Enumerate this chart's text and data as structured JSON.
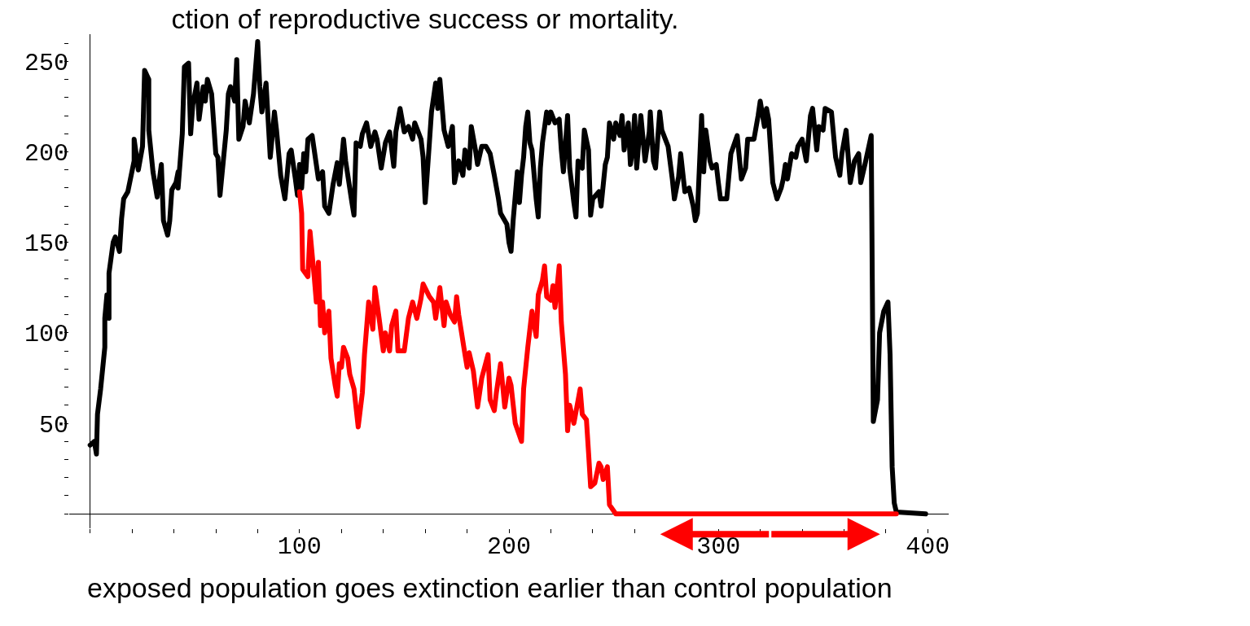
{
  "chart_data": {
    "type": "line",
    "title": "ction of reproductive success or mortality.",
    "annotations": [
      "exposed population goes extinction earlier than control population"
    ],
    "xlim": [
      -10,
      410
    ],
    "ylim": [
      -8,
      265
    ],
    "xticks": [
      100,
      200,
      300,
      400
    ],
    "yticks": [
      50,
      100,
      150,
      200,
      250
    ],
    "marker": "none",
    "line_style": "solid",
    "series": [
      {
        "color": "#000000",
        "x": [
          0,
          2,
          3,
          3.5,
          5,
          7,
          7,
          8,
          9,
          9,
          11,
          12,
          14,
          15,
          16,
          18,
          21,
          21,
          23,
          25,
          26,
          28,
          28,
          30,
          32,
          34,
          35,
          37,
          38,
          39,
          41,
          42,
          42,
          44,
          45,
          47,
          48,
          49,
          51,
          52,
          54,
          55,
          56,
          58,
          60,
          61,
          62,
          65,
          66,
          67,
          69,
          70,
          71,
          73,
          74,
          76,
          78,
          80,
          81,
          82,
          84,
          86,
          88,
          89,
          91,
          93,
          95,
          96,
          98,
          99,
          100,
          101,
          102,
          103,
          104,
          106,
          107,
          109,
          111,
          112,
          114,
          116,
          118,
          119,
          121,
          122,
          125,
          126,
          127,
          129,
          130,
          132,
          134,
          136,
          137,
          139,
          141,
          143,
          145,
          146,
          148,
          150,
          152,
          154,
          155,
          158,
          159,
          160,
          162,
          163,
          165,
          166,
          167,
          169,
          171,
          173,
          174,
          176,
          178,
          179,
          181,
          182,
          184,
          185,
          187,
          189,
          191,
          193,
          195,
          196,
          198,
          199,
          200,
          201,
          202,
          204,
          205,
          206,
          207,
          208,
          209,
          210,
          211,
          213,
          214,
          215,
          216,
          218,
          219,
          220,
          222,
          224,
          225,
          226,
          228,
          229,
          231,
          232,
          233,
          235,
          236,
          238,
          239,
          240,
          243,
          244,
          246,
          247,
          248,
          250,
          251,
          253,
          254,
          255,
          257,
          258,
          259,
          260,
          261,
          263,
          265,
          266,
          267,
          267.5,
          269,
          270,
          272,
          273,
          276,
          278,
          279,
          281,
          282,
          284,
          286,
          288,
          289,
          290,
          292,
          293,
          294,
          296,
          297,
          299,
          300,
          301,
          304,
          306,
          309,
          311,
          313,
          314,
          317,
          319,
          320,
          322,
          323,
          324,
          326,
          328,
          330,
          331,
          332,
          333,
          335,
          337,
          338,
          340,
          342,
          344,
          345,
          347,
          348,
          350,
          351,
          354,
          356,
          358,
          359,
          361,
          363,
          365,
          367,
          368,
          370,
          373,
          374,
          376,
          377,
          379,
          381,
          382,
          383,
          384,
          385,
          399
        ],
        "values": [
          38,
          40,
          33,
          55,
          69,
          92,
          108,
          121,
          108,
          133,
          150,
          153,
          145,
          163,
          174,
          178,
          195,
          207,
          190,
          203,
          245,
          240,
          212,
          189,
          175,
          193,
          162,
          154,
          162,
          179,
          183,
          189,
          180,
          210,
          247,
          249,
          210,
          226,
          238,
          218,
          236,
          228,
          240,
          232,
          199,
          197,
          176,
          212,
          232,
          236,
          228,
          251,
          207,
          214,
          228,
          216,
          232,
          261,
          236,
          222,
          238,
          197,
          222,
          212,
          187,
          174,
          199,
          201,
          185,
          176,
          193,
          180,
          199,
          189,
          207,
          209,
          201,
          185,
          189,
          170,
          166,
          182,
          194,
          182,
          207,
          195,
          172,
          165,
          205,
          203,
          210,
          216,
          203,
          211,
          207,
          191,
          205,
          211,
          192,
          211,
          224,
          211,
          214,
          207,
          216,
          207,
          197,
          172,
          205,
          222,
          238,
          224,
          240,
          212,
          203,
          214,
          183,
          195,
          187,
          201,
          191,
          214,
          201,
          193,
          203,
          203,
          199,
          187,
          174,
          166,
          162,
          160,
          150,
          145,
          162,
          189,
          172,
          187,
          197,
          214,
          222,
          205,
          201,
          174,
          164,
          191,
          205,
          222,
          216,
          222,
          216,
          218,
          201,
          189,
          220,
          191,
          172,
          164,
          195,
          191,
          212,
          201,
          165,
          174,
          178,
          170,
          193,
          197,
          216,
          207,
          216,
          209,
          220,
          201,
          216,
          193,
          201,
          220,
          191,
          220,
          195,
          203,
          211,
          222,
          195,
          191,
          222,
          212,
          203,
          185,
          174,
          186,
          199,
          178,
          180,
          170,
          162,
          166,
          220,
          189,
          212,
          195,
          191,
          193,
          183,
          174,
          174,
          199,
          209,
          185,
          191,
          207,
          207,
          220,
          228,
          214,
          224,
          218,
          183,
          174,
          180,
          185,
          193,
          185,
          199,
          197,
          203,
          207,
          195,
          220,
          224,
          201,
          214,
          212,
          224,
          222,
          197,
          187,
          199,
          212,
          183,
          195,
          199,
          183,
          193,
          209,
          51,
          63,
          100,
          112,
          117,
          88,
          26,
          6,
          1,
          0
        ]
      },
      {
        "color": "#ff0000",
        "x": [
          100,
          101,
          101.5,
          104,
          105,
          107,
          108,
          109,
          110,
          111,
          112,
          114,
          115,
          117,
          118,
          119,
          120,
          121,
          123,
          124,
          126,
          128,
          130,
          131,
          133,
          135,
          136,
          138,
          140,
          141,
          143,
          144,
          146,
          147,
          150,
          152,
          154,
          156,
          158,
          159,
          162,
          164,
          165,
          167,
          169,
          170,
          172,
          174,
          175,
          176,
          179,
          180,
          181,
          183,
          185,
          187,
          190,
          191,
          193,
          194,
          196,
          198,
          200,
          201,
          203,
          206,
          207,
          209,
          211,
          213,
          214,
          216,
          217,
          218,
          220,
          221,
          222,
          224,
          225,
          227,
          228,
          229,
          231,
          234,
          235,
          237,
          238,
          239,
          241,
          243,
          244,
          245,
          247,
          248,
          251,
          385
        ],
        "values": [
          178,
          166,
          135,
          131,
          156,
          131,
          117,
          139,
          104,
          117,
          100,
          112,
          86,
          71,
          65,
          83,
          81,
          92,
          86,
          77,
          69,
          48,
          67,
          88,
          117,
          102,
          125,
          108,
          90,
          100,
          90,
          104,
          112,
          90,
          90,
          108,
          117,
          108,
          119,
          127,
          120,
          117,
          108,
          125,
          104,
          117,
          110,
          106,
          120,
          110,
          88,
          81,
          89,
          79,
          59,
          75,
          88,
          63,
          57,
          67,
          83,
          59,
          75,
          71,
          50,
          40,
          69,
          92,
          112,
          98,
          121,
          129,
          137,
          120,
          118,
          126,
          114,
          137,
          106,
          77,
          46,
          60,
          50,
          69,
          55,
          52,
          34,
          15,
          17,
          28,
          26,
          19,
          26,
          5,
          0,
          0
        ]
      }
    ]
  }
}
